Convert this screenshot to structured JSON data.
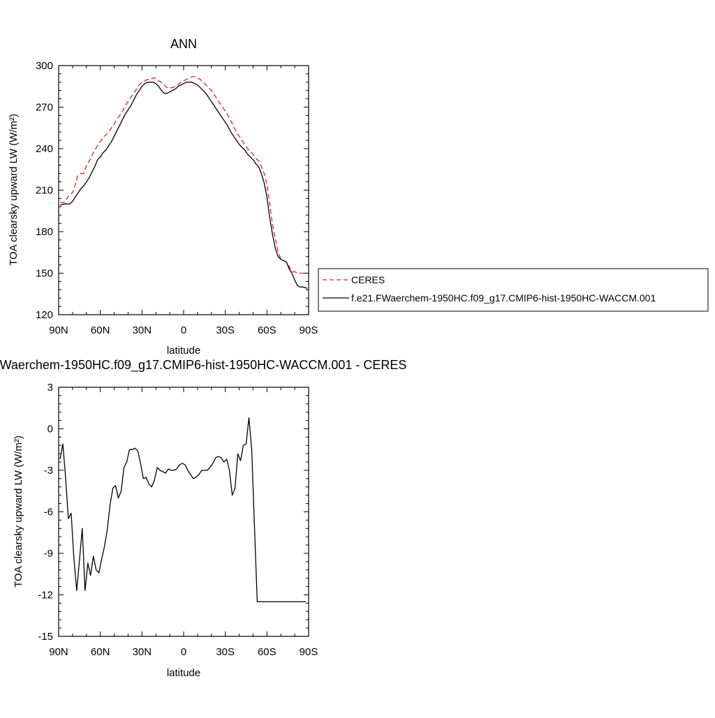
{
  "chart_data": [
    {
      "type": "line",
      "title": "ANN",
      "xlabel": "latitude",
      "ylabel": "TOA clearsky upward LW (W/m²)",
      "ylim": [
        120,
        300
      ],
      "xlim": [
        90,
        -90
      ],
      "x_tick_values": [
        90,
        60,
        30,
        0,
        -30,
        -60,
        -90
      ],
      "x_tick_labels": [
        "90N",
        "60N",
        "30N",
        "0",
        "30S",
        "60S",
        "90S"
      ],
      "y_tick_values": [
        120,
        150,
        180,
        210,
        240,
        270,
        300
      ],
      "y_tick_labels": [
        "120",
        "150",
        "180",
        "210",
        "240",
        "270",
        "300"
      ],
      "legend_position": "right",
      "series": [
        {
          "name": "CERES",
          "color": "#e02020",
          "dash": "dashed",
          "x": [
            89,
            86,
            84,
            82,
            80,
            78,
            76,
            74,
            72,
            70,
            68,
            66,
            64,
            62,
            60,
            58,
            56,
            54,
            52,
            50,
            48,
            46,
            44,
            42,
            40,
            38,
            36,
            34,
            32,
            30,
            28,
            26,
            24,
            22,
            20,
            18,
            16,
            14,
            12,
            10,
            8,
            6,
            4,
            2,
            0,
            -2,
            -4,
            -6,
            -8,
            -10,
            -12,
            -14,
            -16,
            -18,
            -20,
            -22,
            -24,
            -26,
            -28,
            -30,
            -32,
            -34,
            -36,
            -38,
            -40,
            -42,
            -44,
            -46,
            -48,
            -50,
            -52,
            -54,
            -56,
            -58,
            -60,
            -62,
            -64,
            -66,
            -68,
            -70,
            -72,
            -74,
            -76,
            -78,
            -80,
            -82,
            -84,
            -86,
            -89
          ],
          "values": [
            201,
            201,
            204,
            207,
            208,
            214,
            221,
            222,
            222,
            228,
            231,
            235,
            239,
            242,
            245,
            248,
            250,
            252,
            255,
            258,
            261,
            264,
            267,
            271,
            274,
            277,
            280,
            283,
            286,
            288,
            289,
            290,
            290,
            291,
            291,
            289,
            288,
            286,
            284,
            284,
            284,
            285,
            286,
            288,
            289,
            290,
            291,
            292,
            292,
            291,
            290,
            288,
            286,
            284,
            282,
            279,
            276,
            273,
            270,
            267,
            264,
            260,
            256,
            252,
            249,
            246,
            243,
            240,
            238,
            236,
            233,
            231,
            227,
            222,
            214,
            200,
            185,
            175,
            166,
            160,
            159,
            158,
            155,
            151,
            151,
            150,
            150,
            150,
            150
          ],
          "x_note": "",
          "values_full": []
        },
        {
          "name": "f.e21.FWaerchem-1950HC.f09_g17.CMIP6-hist-1950HC-WACCM.001",
          "color": "#000000",
          "dash": "solid",
          "x": [
            89,
            86,
            84,
            82,
            80,
            78,
            76,
            74,
            72,
            70,
            68,
            66,
            64,
            62,
            60,
            58,
            56,
            54,
            52,
            50,
            48,
            46,
            44,
            42,
            40,
            38,
            36,
            34,
            32,
            30,
            28,
            26,
            24,
            22,
            20,
            18,
            16,
            14,
            12,
            10,
            8,
            6,
            4,
            2,
            0,
            -2,
            -4,
            -6,
            -8,
            -10,
            -12,
            -14,
            -16,
            -18,
            -20,
            -22,
            -24,
            -26,
            -28,
            -30,
            -32,
            -34,
            -36,
            -38,
            -40,
            -42,
            -44,
            -46,
            -48,
            -50,
            -52,
            -54,
            -56,
            -58,
            -60,
            -62,
            -64,
            -66,
            -68,
            -70,
            -72,
            -74,
            -76,
            -78,
            -80,
            -82,
            -84,
            -86,
            -89
          ],
          "values": [
            199,
            200,
            200,
            200,
            202,
            205,
            208,
            211,
            213,
            216,
            219,
            223,
            227,
            232,
            234,
            237,
            239,
            242,
            245,
            249,
            253,
            257,
            261,
            265,
            268,
            271,
            275,
            279,
            282,
            285,
            287,
            288,
            288,
            288,
            287,
            285,
            282,
            280,
            280,
            281,
            282,
            283,
            285,
            286,
            287,
            288,
            288,
            288,
            287,
            286,
            284,
            282,
            280,
            277,
            274,
            271,
            268,
            265,
            262,
            259,
            256,
            252,
            249,
            246,
            243,
            241,
            239,
            236,
            234,
            232,
            229,
            227,
            222,
            215,
            205,
            190,
            178,
            168,
            162,
            160,
            159,
            158,
            153,
            150,
            145,
            141,
            140,
            140,
            139
          ],
          "x_note": "",
          "values_full": []
        }
      ]
    },
    {
      "type": "line",
      "title": "f.e21.FWaerchem-1950HC.f09_g17.CMIP6-hist-1950HC-WACCM.001 - CERES",
      "xlabel": "latitude",
      "ylabel": "TOA clearsky upward LW (W/m²)",
      "ylim": [
        -15,
        3
      ],
      "xlim": [
        90,
        -90
      ],
      "x_tick_values": [
        90,
        60,
        30,
        0,
        -30,
        -60,
        -90
      ],
      "x_tick_labels": [
        "90N",
        "60N",
        "30N",
        "0",
        "30S",
        "60S",
        "90S"
      ],
      "y_tick_values": [
        -15,
        -12,
        -9,
        -6,
        -3,
        0,
        3
      ],
      "y_tick_labels": [
        "-15",
        "-12",
        "-9",
        "-6",
        "-3",
        "0",
        "3"
      ],
      "series": [
        {
          "name": "",
          "color": "#000000",
          "dash": "solid",
          "x": [
            89,
            87,
            85,
            83,
            81,
            79,
            77,
            75,
            73,
            71,
            69,
            67,
            65,
            63,
            61,
            59,
            57,
            55,
            53,
            51,
            49,
            47,
            45,
            43,
            41,
            39,
            37,
            35,
            33,
            31,
            29,
            27,
            25,
            23,
            21,
            19,
            17,
            15,
            13,
            11,
            9,
            7,
            5,
            3,
            1,
            -1,
            -3,
            -5,
            -7,
            -9,
            -11,
            -13,
            -15,
            -17,
            -19,
            -21,
            -23,
            -25,
            -27,
            -29,
            -31,
            -33,
            -35,
            -37,
            -39,
            -41,
            -43,
            -45,
            -47,
            -49,
            -51,
            -53,
            -55,
            -57,
            -59,
            -61,
            -63,
            -65,
            -67,
            -69,
            -71,
            -73,
            -75,
            -77,
            -79,
            -81,
            -83,
            -85,
            -88
          ],
          "values": [
            -2.2,
            -1.1,
            -3.5,
            -6.5,
            -6.1,
            -9.4,
            -11.7,
            -9.5,
            -7.2,
            -11.7,
            -9.7,
            -10.6,
            -9.2,
            -10.2,
            -10.4,
            -9.4,
            -8.5,
            -7.3,
            -5.5,
            -4.3,
            -4.1,
            -5.0,
            -4.5,
            -2.8,
            -2.4,
            -1.5,
            -1.5,
            -1.4,
            -1.6,
            -2.5,
            -3.6,
            -3.5,
            -4.0,
            -4.2,
            -3.7,
            -2.8,
            -3.0,
            -3.1,
            -3.2,
            -2.9,
            -3.0,
            -3.0,
            -2.9,
            -2.6,
            -2.5,
            -2.6,
            -3.0,
            -3.3,
            -3.6,
            -3.5,
            -3.3,
            -3.0,
            -3.0,
            -3.0,
            -2.8,
            -2.5,
            -2.1,
            -2.0,
            -2.1,
            -2.4,
            -2.2,
            -3.0,
            -4.8,
            -4.3,
            -1.8,
            -2.3,
            -1.2,
            -1.1,
            0.8,
            -1.5,
            -7.0,
            -12.5,
            -12.5,
            -12.5,
            -12.5,
            -12.5,
            -12.5,
            -12.5,
            -12.5,
            -12.5,
            -12.5,
            -12.5,
            -12.5,
            -12.5,
            -12.5,
            -12.5,
            -12.5,
            -12.5,
            -12.5
          ],
          "x_note": "",
          "values_full": []
        }
      ]
    }
  ]
}
